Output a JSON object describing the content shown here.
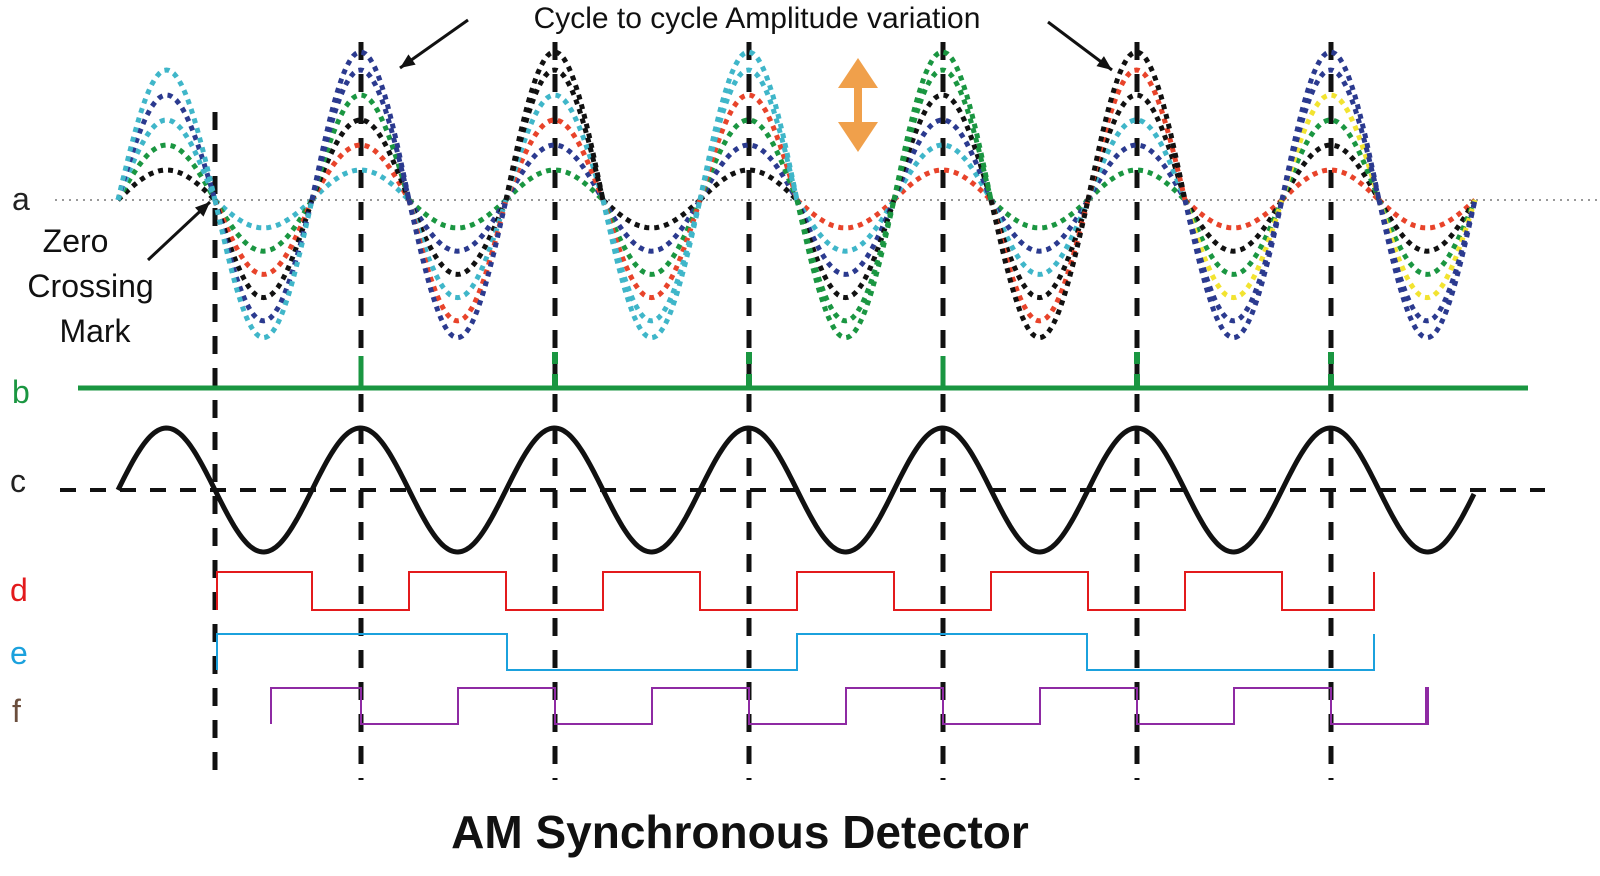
{
  "title": "AM Synchronous Detector",
  "annotations": {
    "amplitude_variation": "Cycle to cycle Amplitude variation",
    "zero_crossing": [
      "Zero",
      "Crossing",
      "Mark"
    ]
  },
  "signals": [
    {
      "id": "a",
      "label": "a",
      "color": "#222222"
    },
    {
      "id": "b",
      "label": "b",
      "color": "#1a9641"
    },
    {
      "id": "c",
      "label": "c",
      "color": "#222222"
    },
    {
      "id": "d",
      "label": "d",
      "color": "#e31a1c"
    },
    {
      "id": "e",
      "label": "e",
      "color": "#1ba1dd"
    },
    {
      "id": "f",
      "label": "f",
      "color": "#6b4e3d"
    }
  ],
  "colors": {
    "trace_palette": [
      "#e8432a",
      "#2b3a8f",
      "#3fb6c9",
      "#1a9641",
      "#111111",
      "#f2e330"
    ],
    "arrow_orange": "#f0a04b",
    "markers": "#111111",
    "square_d": "#e31a1c",
    "square_e": "#1ba1dd",
    "square_f": "#8e2aa3",
    "pulse_b": "#1a9641"
  }
}
